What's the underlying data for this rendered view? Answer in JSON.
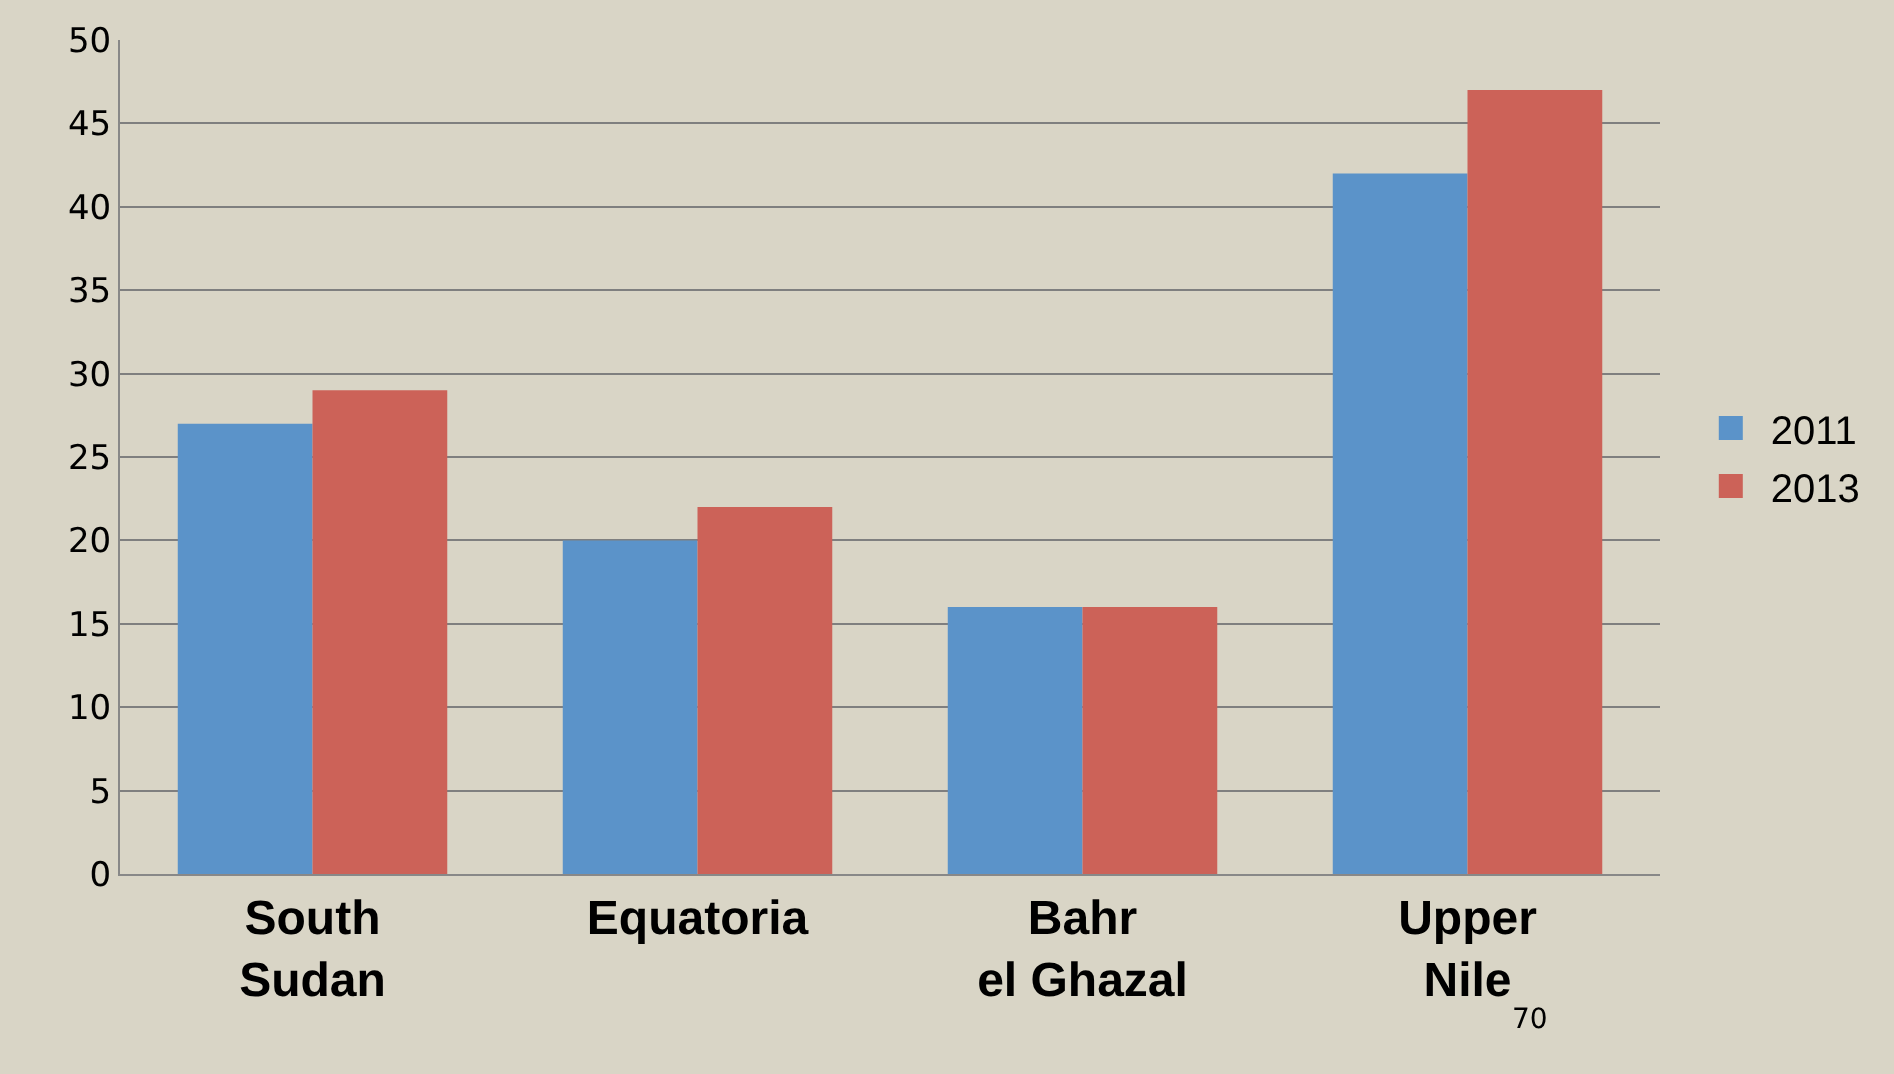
{
  "chart_data": {
    "type": "bar",
    "categories": [
      "South Sudan",
      "Equatoria",
      "Bahr el Ghazal",
      "Upper Nile"
    ],
    "series": [
      {
        "name": "2011",
        "color": "#5b93c9",
        "values": [
          27,
          20,
          16,
          42
        ]
      },
      {
        "name": "2013",
        "color": "#cc6258",
        "values": [
          29,
          22,
          16,
          47
        ]
      }
    ],
    "ylim": [
      0,
      50
    ],
    "yticks": [
      0,
      5,
      10,
      15,
      20,
      25,
      30,
      35,
      40,
      45,
      50
    ],
    "grid": "y",
    "legend": "right",
    "annotations": [
      "70"
    ]
  }
}
